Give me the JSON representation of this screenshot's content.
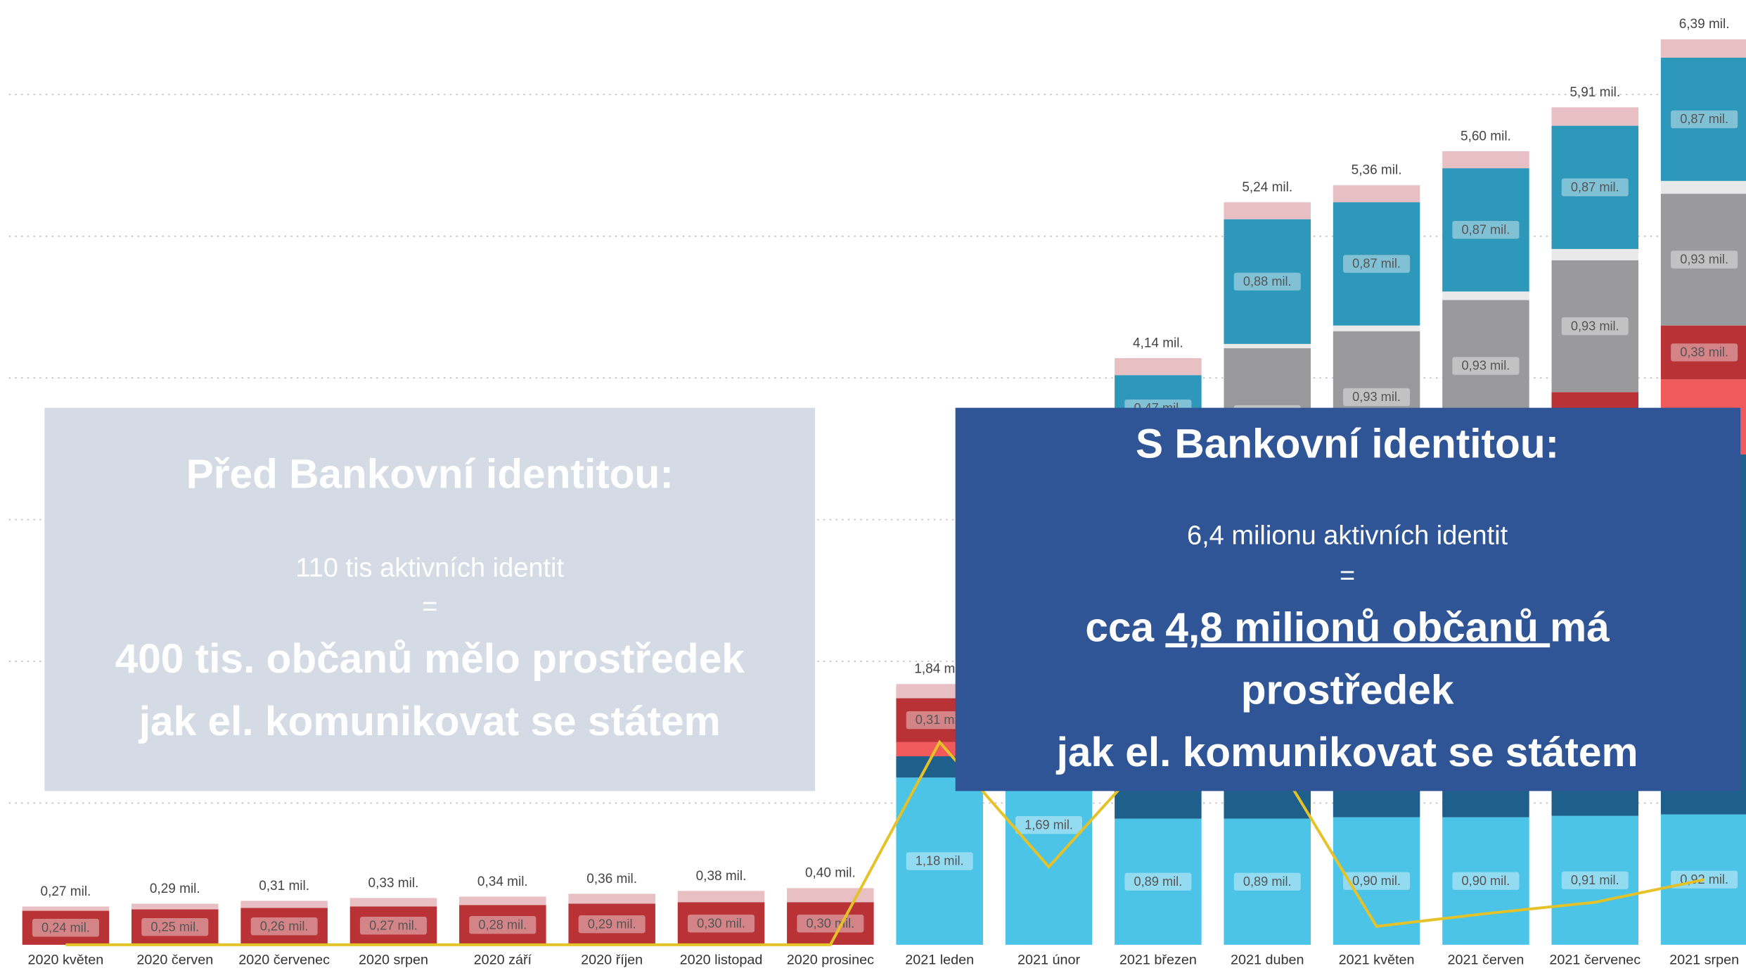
{
  "chart_data": {
    "type": "bar",
    "categories": [
      "2020 květen",
      "2020 červen",
      "2020 červenec",
      "2020 srpen",
      "2020 září",
      "2020 říjen",
      "2020 listopad",
      "2020 prosinec",
      "2021 leden",
      "2021 únor",
      "2021 březen",
      "2021 duben",
      "2021 květen",
      "2021 červen",
      "2021 červenec",
      "2021 srpen"
    ],
    "ylim": [
      0,
      6.6
    ],
    "yticks": [
      1,
      2,
      3,
      4,
      5,
      6
    ],
    "grid": true,
    "series": [
      {
        "color": "#4bc4e8",
        "values": [
          0,
          0,
          0,
          0,
          0,
          0,
          0,
          0,
          1.18,
          1.69,
          0.89,
          0.89,
          0.9,
          0.9,
          0.91,
          0.92
        ],
        "value_labels": [
          null,
          null,
          null,
          null,
          null,
          null,
          null,
          null,
          "1,18 mil.",
          "1,69 mil.",
          "0,89 mil.",
          "0,89 mil.",
          "0,90 mil.",
          "0,90 mil.",
          "0,91 mil.",
          "0,92 mil."
        ]
      },
      {
        "color": "#1f5f8b",
        "values": [
          0,
          0,
          0,
          0,
          0,
          0,
          0,
          0,
          0.15,
          0.9,
          2.66,
          2.39,
          2.5,
          2.72,
          2.61,
          2.54
        ]
      },
      {
        "color": "#f05a5a",
        "values": [
          0,
          0,
          0,
          0,
          0,
          0,
          0,
          0,
          0.1,
          0,
          0,
          0,
          0,
          0,
          0,
          0.53
        ]
      },
      {
        "color": "#b83236",
        "values": [
          0.24,
          0.25,
          0.26,
          0.27,
          0.28,
          0.29,
          0.3,
          0.3,
          0.31,
          0.3,
          0,
          0,
          0,
          0,
          0.38,
          0.38
        ],
        "value_labels": [
          "0,24 mil.",
          "0,25 mil.",
          "0,26 mil.",
          "0,27 mil.",
          "0,28 mil.",
          "0,29 mil.",
          "0,30 mil.",
          "0,30 mil.",
          "0,31 mil.",
          null,
          null,
          null,
          null,
          null,
          null,
          "0,38 mil."
        ]
      },
      {
        "color": "#9a9a9c",
        "values": [
          0,
          0,
          0,
          0,
          0,
          0,
          0,
          0,
          0,
          0,
          0,
          0.93,
          0.93,
          0.93,
          0.93,
          0.93
        ],
        "value_labels": [
          null,
          null,
          null,
          null,
          null,
          null,
          null,
          null,
          null,
          null,
          null,
          "0,93 mil.",
          "0,93 mil.",
          "0,93 mil.",
          "0,93 mil.",
          "0,93 mil."
        ]
      },
      {
        "color": "#e9e9ea",
        "values": [
          0,
          0,
          0,
          0,
          0,
          0,
          0,
          0,
          0,
          0,
          0,
          0.03,
          0.04,
          0.06,
          0.08,
          0.09
        ]
      },
      {
        "color": "#2e98bb",
        "values": [
          0,
          0,
          0,
          0,
          0,
          0,
          0,
          0,
          0,
          0,
          0.47,
          0.88,
          0.87,
          0.87,
          0.87,
          0.87
        ],
        "value_labels": [
          null,
          null,
          null,
          null,
          null,
          null,
          null,
          null,
          null,
          null,
          "0,47 mil.",
          "0,88 mil.",
          "0,87 mil.",
          "0,87 mil.",
          "0,87 mil.",
          "0,87 mil."
        ]
      },
      {
        "color": "#e8bfc3",
        "values": [
          0.03,
          0.04,
          0.05,
          0.06,
          0.06,
          0.07,
          0.08,
          0.1,
          0.1,
          0.1,
          0.12,
          0.12,
          0.12,
          0.12,
          0.13,
          0.13
        ]
      }
    ],
    "totals": [
      0.27,
      0.29,
      0.31,
      0.33,
      0.34,
      0.36,
      0.38,
      0.4,
      1.84,
      null,
      4.14,
      5.24,
      5.36,
      5.6,
      5.91,
      6.39
    ],
    "total_labels": [
      "0,27 mil.",
      "0,29 mil.",
      "0,31 mil.",
      "0,33 mil.",
      "0,34 mil.",
      "0,36 mil.",
      "0,38 mil.",
      "0,40 mil.",
      "1,84 mil.",
      null,
      "4,14 mil.",
      "5,24 mil.",
      "5,36 mil.",
      "5,60 mil.",
      "5,91 mil.",
      "6,39 mil."
    ],
    "line": {
      "color": "#e6c229",
      "values": [
        0,
        0,
        0,
        0,
        0,
        0,
        0,
        0,
        1.43,
        0.55,
        1.4,
        1.4,
        0.13,
        0.22,
        0.3,
        0.46
      ]
    }
  },
  "left_box": {
    "title": "Před Bankovní identitou:",
    "line1": "110 tis aktivních identit",
    "line2": "=",
    "line3": "400 tis. občanů mělo prostředek",
    "line4": "jak el. komunikovat se státem"
  },
  "right_box": {
    "title": "S Bankovní identitou:",
    "line1": "6,4 milionu aktivních identit",
    "line2": "=",
    "line3a": "cca ",
    "line3b": "4,8 milionů občanů ",
    "line3c": "má",
    "line4": "prostředek",
    "line5": "jak el. komunikovat se státem"
  }
}
